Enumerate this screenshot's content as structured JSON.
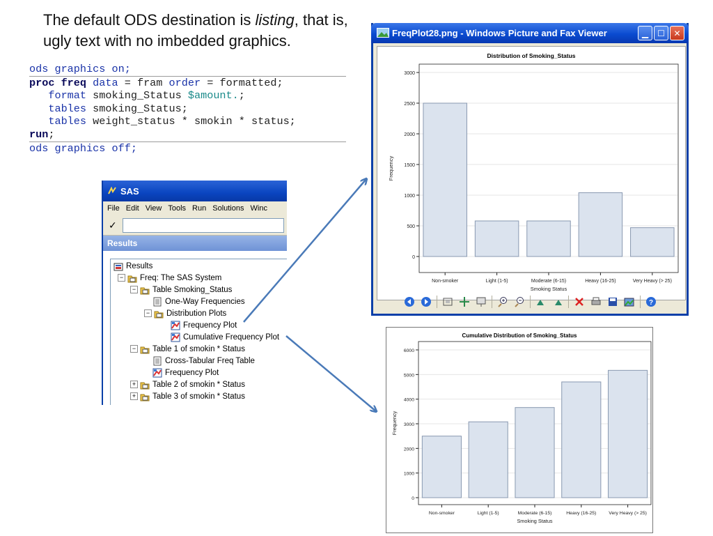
{
  "heading": {
    "part1": "The default ODS destination is ",
    "em": "listing",
    "part2": ", that is, ugly text with no imbedded graphics."
  },
  "code": {
    "l1": "ods graphics on;",
    "l2a": "proc freq",
    "l2b": " data",
    "l2c": " = fram ",
    "l2d": "order",
    "l2e": " = formatted;",
    "l3a": "   format",
    "l3b": " smoking_Status ",
    "l3c": "$amount.",
    "l3d": ";",
    "l4a": "   tables",
    "l4b": " smoking_Status;",
    "l5a": "   tables",
    "l5b": " weight_status * smokin * status;",
    "l6a": "run",
    "l6b": ";",
    "l7": "ods graphics off;"
  },
  "sas": {
    "title": "SAS",
    "menu": [
      "File",
      "Edit",
      "View",
      "Tools",
      "Run",
      "Solutions",
      "Winc"
    ],
    "results_header": "Results",
    "tree": [
      {
        "label": "Results"
      },
      {
        "label": "Freq:  The SAS System"
      },
      {
        "label": "Table Smoking_Status"
      },
      {
        "label": "One-Way Frequencies"
      },
      {
        "label": "Distribution Plots"
      },
      {
        "label": "Frequency Plot"
      },
      {
        "label": "Cumulative Frequency Plot"
      },
      {
        "label": "Table 1 of smokin * Status"
      },
      {
        "label": "Cross-Tabular Freq Table"
      },
      {
        "label": "Frequency Plot"
      },
      {
        "label": "Table 2 of smokin * Status"
      },
      {
        "label": "Table 3 of smokin * Status"
      }
    ]
  },
  "viewer": {
    "title": "FreqPlot28.png - Windows Picture and Fax Viewer"
  },
  "colors": {
    "bar_fill": "#dbe3ee",
    "bar_stroke": "#8898b0",
    "arrow": "#4a7ab8"
  },
  "chart_data": [
    {
      "type": "bar",
      "title": "Distribution of Smoking_Status",
      "xlabel": "Smoking Status",
      "ylabel": "Frequency",
      "categories": [
        "Non-smoker",
        "Light (1-5)",
        "Moderate (6-15)",
        "Heavy (16-25)",
        "Very Heavy (> 25)"
      ],
      "values": [
        2500,
        580,
        580,
        1040,
        470
      ],
      "ylim": [
        0,
        3000
      ],
      "yticks": [
        "0",
        "500",
        "1000",
        "1500",
        "2000",
        "2500",
        "3000"
      ]
    },
    {
      "type": "bar",
      "title": "Cumulative Distribution of Smoking_Status",
      "xlabel": "Smoking Status",
      "ylabel": "Frequency",
      "categories": [
        "Non-smoker",
        "Light (1-5)",
        "Moderate (6-15)",
        "Heavy (16-25)",
        "Very Heavy (> 25)"
      ],
      "values": [
        2500,
        3080,
        3660,
        4700,
        5170
      ],
      "ylim": [
        0,
        6000
      ],
      "yticks": [
        "0",
        "1000",
        "2000",
        "3000",
        "4000",
        "5000",
        "6000"
      ]
    }
  ]
}
